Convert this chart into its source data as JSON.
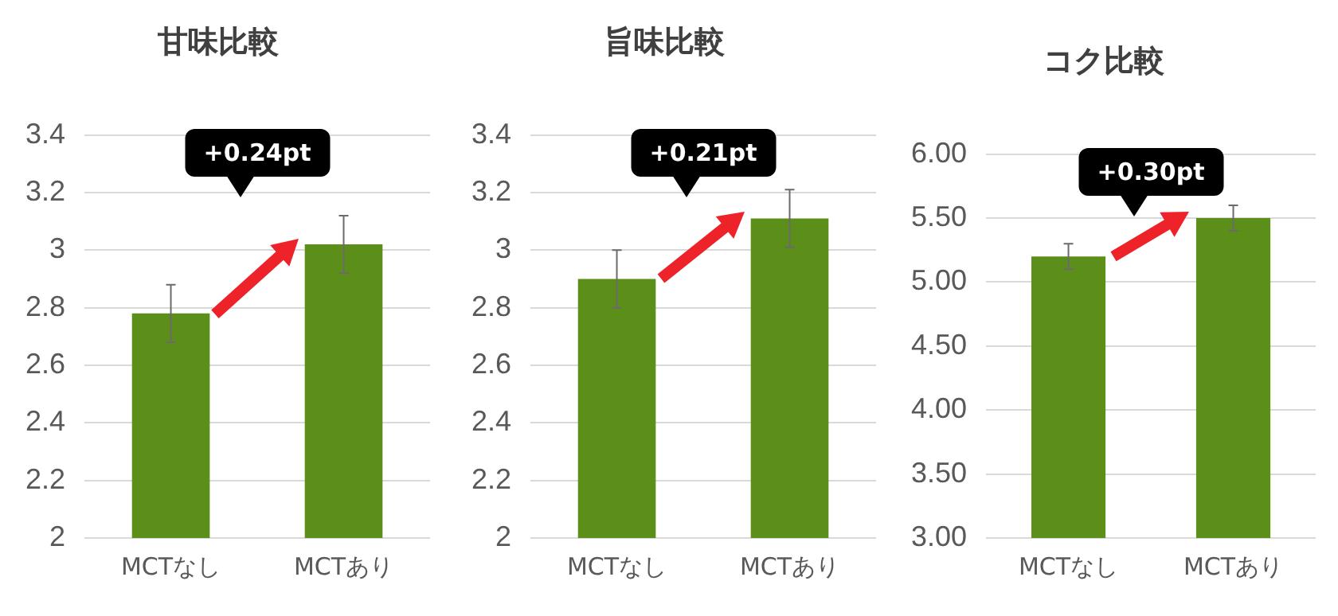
{
  "chart_data": [
    {
      "type": "bar",
      "title": "甘味比較",
      "categories": [
        "MCTなし",
        "MCTあり"
      ],
      "values": [
        2.78,
        3.02
      ],
      "errors": [
        0.1,
        0.1
      ],
      "color": "#5b8f19",
      "ylim": [
        2,
        3.4
      ],
      "yticks": [
        2,
        2.2,
        2.4,
        2.6,
        2.8,
        3,
        3.2,
        3.4
      ],
      "grid": "y",
      "annotations": [
        "+0.24pt"
      ]
    },
    {
      "type": "bar",
      "title": "旨味比較",
      "categories": [
        "MCTなし",
        "MCTあり"
      ],
      "values": [
        2.9,
        3.11
      ],
      "errors": [
        0.1,
        0.1
      ],
      "color": "#5b8f19",
      "ylim": [
        2,
        3.4
      ],
      "yticks": [
        2,
        2.2,
        2.4,
        2.6,
        2.8,
        3,
        3.2,
        3.4
      ],
      "grid": "y",
      "annotations": [
        "+0.21pt"
      ]
    },
    {
      "type": "bar",
      "title": "コク比較",
      "categories": [
        "MCTなし",
        "MCTあり"
      ],
      "values": [
        5.2,
        5.5
      ],
      "errors": [
        0.1,
        0.1
      ],
      "color": "#5b8f19",
      "ylim": [
        3,
        6
      ],
      "yticks": [
        {
          "value": 3,
          "label": "3.00"
        },
        {
          "value": 3.5,
          "label": "3.50"
        },
        {
          "value": 4,
          "label": "4.00"
        },
        {
          "value": 4.5,
          "label": "4.50"
        },
        {
          "value": 5,
          "label": "5.00"
        },
        {
          "value": 5.5,
          "label": "5.50"
        },
        {
          "value": 6,
          "label": "6.00"
        }
      ],
      "grid": "y",
      "annotations": [
        "+0.30pt"
      ]
    }
  ]
}
